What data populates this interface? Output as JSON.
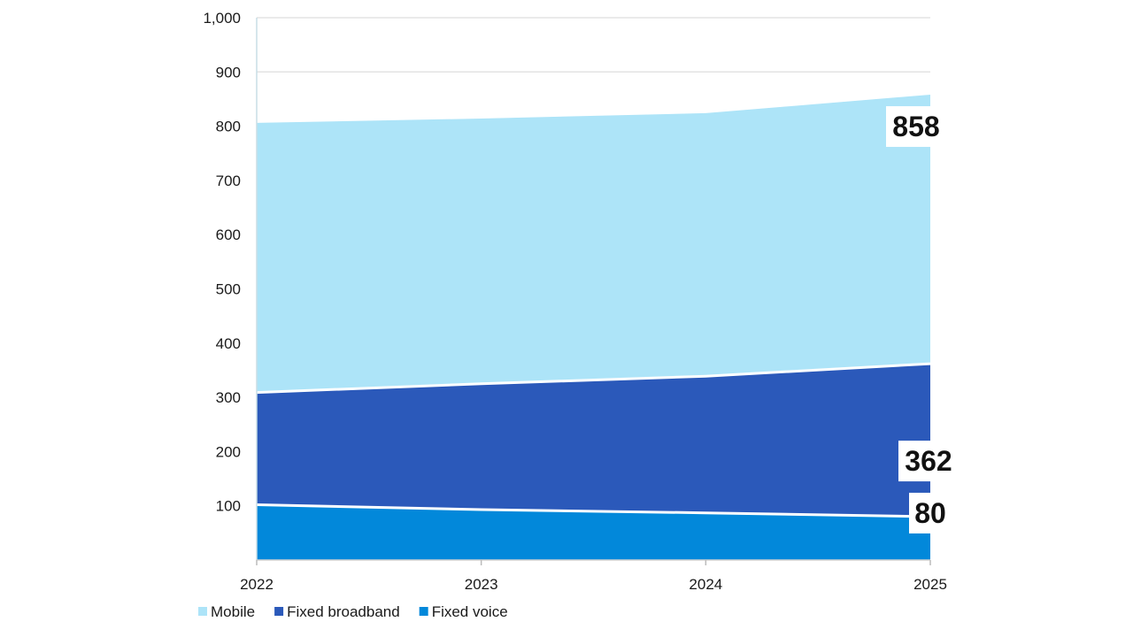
{
  "chart_data": {
    "type": "area",
    "stacked": true,
    "x": [
      "2022",
      "2023",
      "2024",
      "2025"
    ],
    "ylim": [
      0,
      1000
    ],
    "yticks": [
      100,
      200,
      300,
      400,
      500,
      600,
      700,
      800,
      900,
      1000
    ],
    "ytick_labels": [
      "100",
      "200",
      "300",
      "400",
      "500",
      "600",
      "700",
      "800",
      "900",
      "1,000"
    ],
    "grid": true,
    "legend_position": "bottom-left",
    "series": [
      {
        "name": "Fixed voice",
        "values": [
          102,
          93,
          87,
          80
        ],
        "color": "#0288DA",
        "end_label": "80"
      },
      {
        "name": "Fixed broadband",
        "values": [
          207,
          232,
          252,
          282
        ],
        "color": "#2B59BA",
        "end_label": "362"
      },
      {
        "name": "Mobile",
        "values": [
          497,
          489,
          485,
          496
        ],
        "color": "#ADE4F8",
        "end_label": "858"
      }
    ],
    "legend": [
      {
        "name": "Mobile",
        "color": "#ADE4F8"
      },
      {
        "name": "Fixed broadband",
        "color": "#2B59BA"
      },
      {
        "name": "Fixed voice",
        "color": "#0288DA"
      }
    ]
  }
}
